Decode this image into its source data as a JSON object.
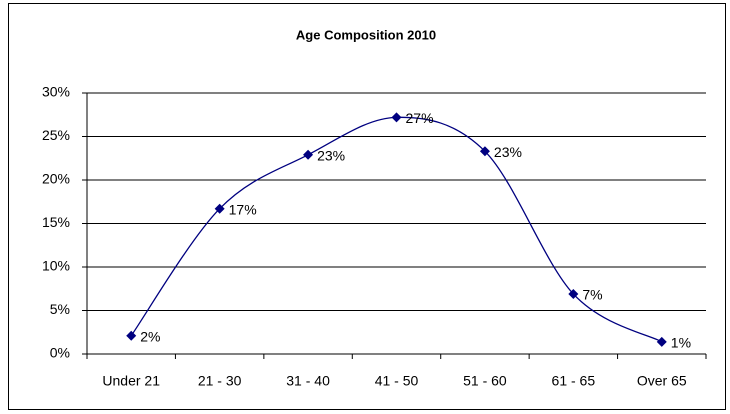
{
  "chart_data": {
    "type": "line",
    "title": "Age Composition 2010",
    "categories": [
      "Under 21",
      "21 - 30",
      "31 - 40",
      "41 - 50",
      "51 - 60",
      "61 - 65",
      "Over 65"
    ],
    "series": [
      {
        "name": "Age Composition",
        "color": "#000080",
        "values": [
          2.1,
          16.7,
          22.9,
          27.2,
          23.3,
          6.9,
          1.4
        ],
        "value_labels": [
          "2%",
          "17%",
          "23%",
          "27%",
          "23%",
          "7%",
          "1%"
        ]
      }
    ],
    "ylim": [
      0,
      30
    ],
    "yticks": [
      {
        "value": 0,
        "label": "0%"
      },
      {
        "value": 5,
        "label": "5%"
      },
      {
        "value": 10,
        "label": "10%"
      },
      {
        "value": 15,
        "label": "15%"
      },
      {
        "value": 20,
        "label": "20%"
      },
      {
        "value": 25,
        "label": "25%"
      },
      {
        "value": 30,
        "label": "30%"
      }
    ],
    "grid": true,
    "smooth": true
  }
}
